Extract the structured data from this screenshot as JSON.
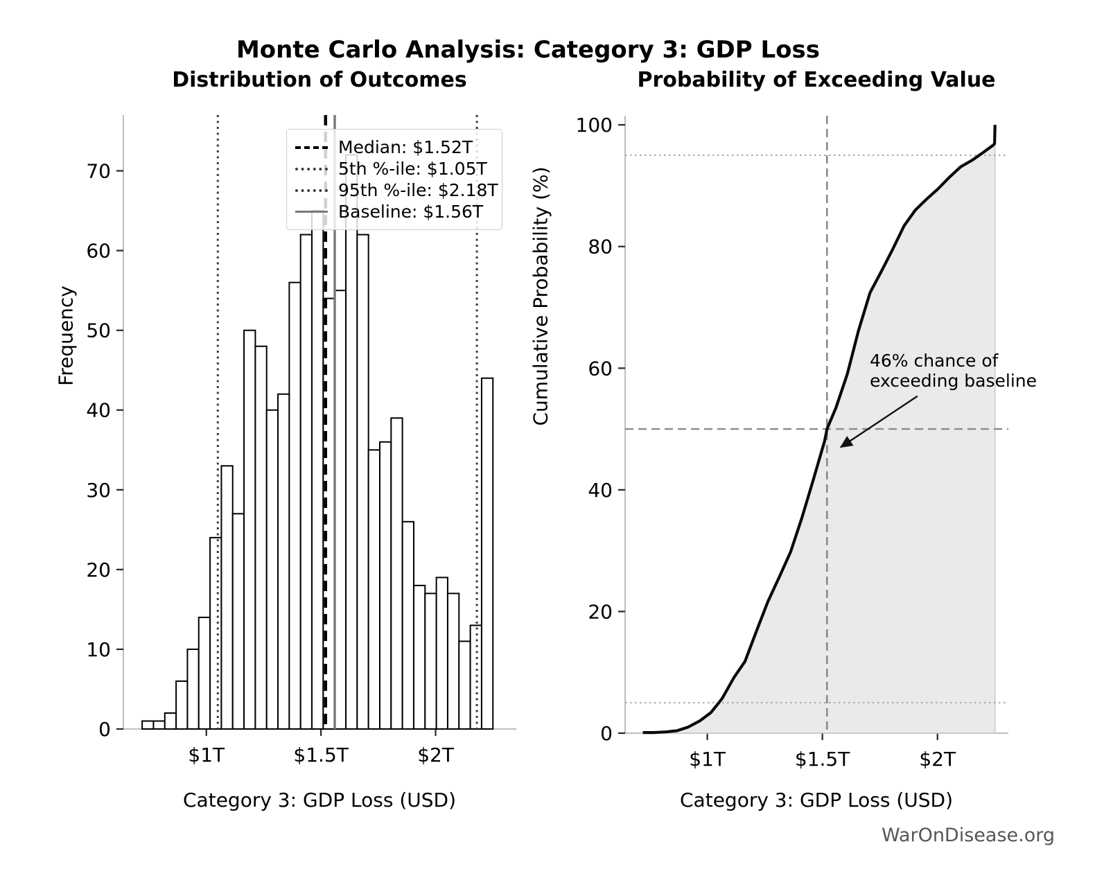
{
  "page": {
    "title": "Monte Carlo Analysis: Category 3: GDP Loss",
    "footer": "WarOnDisease.org"
  },
  "chart_data": [
    {
      "type": "bar",
      "name": "histogram",
      "subtitle": "Distribution of Outcomes",
      "xlabel": "Category 3: GDP Loss (USD)",
      "ylabel": "Frequency",
      "bin_start_trillions": 0.72,
      "bin_width_trillions": 0.049355,
      "counts": [
        1,
        1,
        2,
        6,
        10,
        14,
        24,
        33,
        27,
        50,
        48,
        40,
        42,
        56,
        62,
        65,
        54,
        55,
        72,
        62,
        35,
        36,
        39,
        26,
        18,
        17,
        19,
        17,
        11,
        13,
        44
      ],
      "n_simulations": 999,
      "xlim": [
        0.638,
        2.352
      ],
      "ylim": [
        0,
        77
      ],
      "x_ticks": [
        {
          "v": 1.0,
          "label": "$1T"
        },
        {
          "v": 1.5,
          "label": "$1.5T"
        },
        {
          "v": 2.0,
          "label": "$2T"
        }
      ],
      "y_ticks": [
        0,
        10,
        20,
        30,
        40,
        50,
        60,
        70
      ],
      "ref_lines": {
        "median": {
          "value_trillions": 1.52,
          "style": "dashed-black"
        },
        "pct5": {
          "value_trillions": 1.05,
          "style": "dotted-dark"
        },
        "pct95": {
          "value_trillions": 2.18,
          "style": "dotted-dark"
        },
        "baseline": {
          "value_trillions": 1.56,
          "style": "solid-gray"
        }
      },
      "legend": [
        {
          "label": "Median: $1.52T",
          "swatch": "dashed"
        },
        {
          "label": "5th %-ile: $1.05T",
          "swatch": "dotted"
        },
        {
          "label": "95th %-ile: $2.18T",
          "swatch": "dotted"
        },
        {
          "label": "Baseline: $1.56T",
          "swatch": "solid"
        }
      ],
      "grid": false,
      "legend_position": "upper-right-inside"
    },
    {
      "type": "line",
      "name": "cdf",
      "subtitle": "Probability of Exceeding Value",
      "xlabel": "Category 3: GDP Loss (USD)",
      "ylabel": "Cumulative Probability (%)",
      "xlim": [
        0.643,
        2.308
      ],
      "ylim": [
        0,
        101.5
      ],
      "x_ticks": [
        {
          "v": 1.0,
          "label": "$1T"
        },
        {
          "v": 1.5,
          "label": "$1.5T"
        },
        {
          "v": 2.0,
          "label": "$2T"
        }
      ],
      "y_ticks": [
        0,
        20,
        40,
        60,
        80,
        100
      ],
      "curve_points": [
        [
          0.72,
          0.1
        ],
        [
          0.769,
          0.1
        ],
        [
          0.819,
          0.2
        ],
        [
          0.868,
          0.4
        ],
        [
          0.917,
          1.0
        ],
        [
          0.967,
          2.0
        ],
        [
          1.016,
          3.4
        ],
        [
          1.05,
          5.0
        ],
        [
          1.066,
          5.8
        ],
        [
          1.115,
          9.1
        ],
        [
          1.164,
          11.8
        ],
        [
          1.214,
          16.8
        ],
        [
          1.263,
          21.6
        ],
        [
          1.312,
          25.6
        ],
        [
          1.362,
          29.8
        ],
        [
          1.411,
          35.4
        ],
        [
          1.46,
          41.6
        ],
        [
          1.51,
          48.1
        ],
        [
          1.52,
          50.0
        ],
        [
          1.559,
          53.5
        ],
        [
          1.608,
          59.0
        ],
        [
          1.657,
          66.2
        ],
        [
          1.707,
          72.4
        ],
        [
          1.756,
          75.9
        ],
        [
          1.805,
          79.5
        ],
        [
          1.855,
          83.4
        ],
        [
          1.904,
          86.0
        ],
        [
          1.953,
          87.8
        ],
        [
          2.003,
          89.5
        ],
        [
          2.052,
          91.4
        ],
        [
          2.101,
          93.1
        ],
        [
          2.151,
          94.2
        ],
        [
          2.2,
          95.5
        ],
        [
          2.24,
          96.6
        ],
        [
          2.248,
          96.9
        ],
        [
          2.25,
          100
        ]
      ],
      "fill_to_x": 2.25,
      "guide_lines": {
        "h_dotted": [
          5,
          95
        ],
        "h_dashed": [
          50
        ],
        "v_dashed_trillions": [
          1.52
        ]
      },
      "annotation": {
        "line1": "46% chance of",
        "line2": "exceeding baseline",
        "arrow_from": [
          1.913,
          55.4
        ],
        "arrow_to": [
          1.579,
          47.0
        ]
      },
      "grid": false
    }
  ],
  "colors": {
    "bar_fill": "#ffffff",
    "bar_edge": "#000000",
    "median_line": "#000000",
    "percentile_line": "#3d3d3d",
    "baseline_line": "#7a7a7a",
    "curve": "#0a0a0a",
    "area_fill": "#e8e8e8",
    "guide_gray": "#8a8a8a",
    "guide_light": "#a8a8a8",
    "spine": "#b5b5b5",
    "tick": "#262626",
    "footer_text": "#565656"
  }
}
